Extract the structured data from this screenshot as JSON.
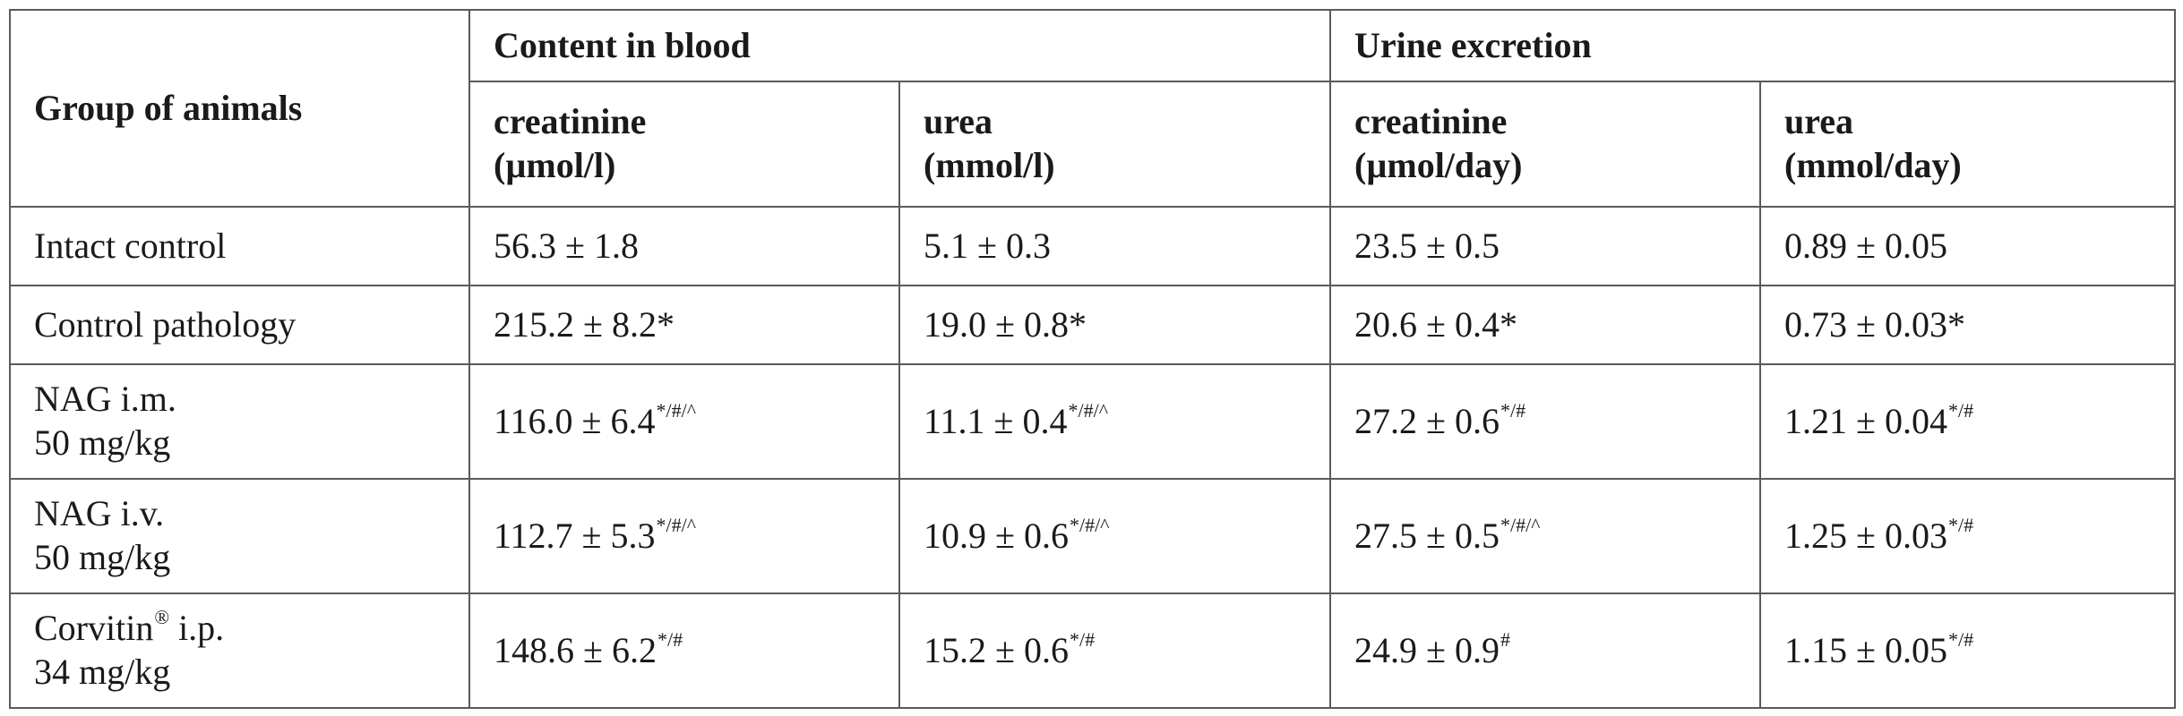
{
  "table": {
    "header": {
      "group_label": "Group of animals",
      "blood_label": "Content in blood",
      "urine_label": "Urine excretion",
      "sub": [
        "creatinine\n(µmol/l)",
        "urea\n(mmol/l)",
        "creatinine\n(µmol/day)",
        "urea\n(mmol/day)"
      ]
    },
    "rows": [
      {
        "group": "Intact control",
        "group_sup": "",
        "group_line2": "",
        "cells": [
          {
            "v": "56.3 ± 1.8",
            "s": ""
          },
          {
            "v": "5.1 ± 0.3",
            "s": ""
          },
          {
            "v": "23.5 ± 0.5",
            "s": ""
          },
          {
            "v": "0.89 ± 0.05",
            "s": ""
          }
        ]
      },
      {
        "group": "Control pathology",
        "group_sup": "",
        "group_line2": "",
        "cells": [
          {
            "v": "215.2 ± 8.2*",
            "s": ""
          },
          {
            "v": "19.0 ± 0.8*",
            "s": ""
          },
          {
            "v": "20.6 ± 0.4*",
            "s": ""
          },
          {
            "v": "0.73 ± 0.03*",
            "s": ""
          }
        ]
      },
      {
        "group": "NAG i.m.",
        "group_sup": "",
        "group_line2": "50 mg/kg",
        "cells": [
          {
            "v": "116.0 ± 6.4",
            "s": "*/#/^"
          },
          {
            "v": "11.1 ± 0.4",
            "s": "*/#/^"
          },
          {
            "v": "27.2 ± 0.6",
            "s": "*/#"
          },
          {
            "v": "1.21 ± 0.04",
            "s": "*/#"
          }
        ]
      },
      {
        "group": "NAG i.v.",
        "group_sup": "",
        "group_line2": "50 mg/kg",
        "cells": [
          {
            "v": "112.7 ± 5.3",
            "s": "*/#/^"
          },
          {
            "v": "10.9 ± 0.6",
            "s": "*/#/^"
          },
          {
            "v": "27.5 ± 0.5",
            "s": "*/#/^"
          },
          {
            "v": "1.25 ± 0.03",
            "s": "*/#"
          }
        ]
      },
      {
        "group": "Corvitin",
        "group_sup": "®",
        "group_after": " i.p.",
        "group_line2": "34 mg/kg",
        "cells": [
          {
            "v": "148.6 ± 6.2",
            "s": "*/#"
          },
          {
            "v": "15.2 ± 0.6",
            "s": "*/#"
          },
          {
            "v": "24.9 ± 0.9",
            "s": "#"
          },
          {
            "v": "1.15 ± 0.05",
            "s": "*/#"
          }
        ]
      }
    ]
  }
}
